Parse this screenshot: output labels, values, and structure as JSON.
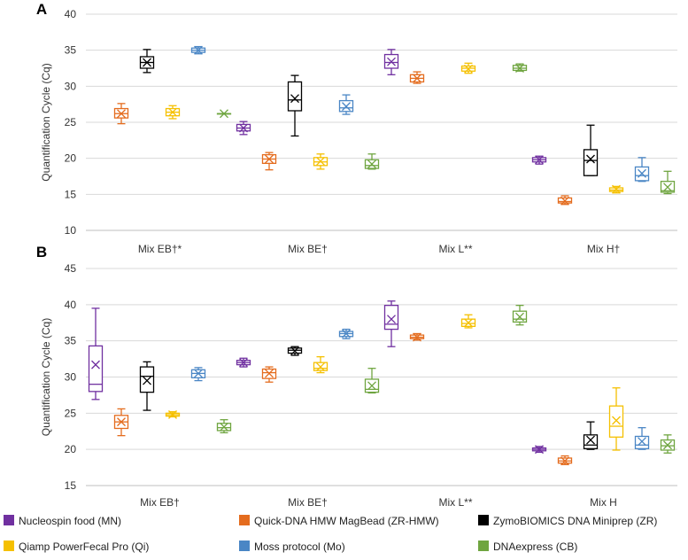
{
  "legend": [
    {
      "name": "Nucleospin food (MN)",
      "color": "#7030A0"
    },
    {
      "name": "Quick-DNA HMW MagBead (ZR-HMW)",
      "color": "#E46C1E"
    },
    {
      "name": "ZymoBIOMICS DNA Miniprep (ZR)",
      "color": "#000000"
    },
    {
      "name": "Qiamp PowerFecal Pro (Qi)",
      "color": "#F5C000"
    },
    {
      "name": "Moss protocol (Mo)",
      "color": "#4A86C5"
    },
    {
      "name": "DNAexpress (CB)",
      "color": "#6FA540"
    }
  ],
  "chart_data": [
    {
      "type": "boxplot",
      "panel": "A",
      "ylabel": "Quantification Cycle (Cq)",
      "ylim": [
        10,
        40
      ],
      "yticks": [
        10,
        15,
        20,
        25,
        30,
        35,
        40
      ],
      "categories": [
        "Mix EB†*",
        "Mix BE†",
        "Mix L**",
        "Mix H†"
      ],
      "series": [
        {
          "name": "Nucleospin food (MN)",
          "boxes": [
            null,
            {
              "min": 23.3,
              "q1": 23.8,
              "median": 24.2,
              "q3": 24.7,
              "max": 25.1,
              "mean": 24.2
            },
            {
              "min": 31.6,
              "q1": 32.5,
              "median": 33.3,
              "q3": 34.4,
              "max": 35.1,
              "mean": 33.4
            },
            {
              "min": 19.2,
              "q1": 19.5,
              "median": 19.8,
              "q3": 20.1,
              "max": 20.3,
              "mean": 19.8
            }
          ]
        },
        {
          "name": "Quick-DNA HMW MagBead (ZR-HMW)",
          "boxes": [
            {
              "min": 24.8,
              "q1": 25.6,
              "median": 26.2,
              "q3": 26.9,
              "max": 27.6,
              "mean": 26.2
            },
            {
              "min": 18.4,
              "q1": 19.3,
              "median": 19.9,
              "q3": 20.5,
              "max": 20.8,
              "mean": 19.9
            },
            {
              "min": 30.4,
              "q1": 30.6,
              "median": 31.1,
              "q3": 31.6,
              "max": 32.0,
              "mean": 31.1
            },
            {
              "min": 13.6,
              "q1": 13.8,
              "median": 14.0,
              "q3": 14.5,
              "max": 14.8,
              "mean": 14.1
            }
          ]
        },
        {
          "name": "ZymoBIOMICS DNA Miniprep (ZR)",
          "boxes": [
            {
              "min": 31.9,
              "q1": 32.5,
              "median": 33.3,
              "q3": 34.1,
              "max": 35.1,
              "mean": 33.3
            },
            {
              "min": 23.1,
              "q1": 26.6,
              "median": 28.1,
              "q3": 30.6,
              "max": 31.5,
              "mean": 28.3
            },
            null,
            {
              "min": 17.6,
              "q1": 17.6,
              "median": 19.7,
              "q3": 21.2,
              "max": 24.6,
              "mean": 19.9
            }
          ]
        },
        {
          "name": "Qiamp PowerFecal Pro (Qi)",
          "boxes": [
            {
              "min": 25.5,
              "q1": 25.9,
              "median": 26.4,
              "q3": 26.9,
              "max": 27.3,
              "mean": 26.4
            },
            {
              "min": 18.5,
              "q1": 19.0,
              "median": 19.5,
              "q3": 20.1,
              "max": 20.6,
              "mean": 19.6
            },
            {
              "min": 31.8,
              "q1": 32.1,
              "median": 32.5,
              "q3": 32.8,
              "max": 33.2,
              "mean": 32.4
            },
            {
              "min": 15.2,
              "q1": 15.4,
              "median": 15.6,
              "q3": 15.9,
              "max": 16.1,
              "mean": 15.7
            }
          ]
        },
        {
          "name": "Moss protocol (Mo)",
          "boxes": [
            {
              "min": 34.5,
              "q1": 34.7,
              "median": 35.0,
              "q3": 35.3,
              "max": 35.5,
              "mean": 35.0
            },
            {
              "min": 26.1,
              "q1": 26.5,
              "median": 27.0,
              "q3": 28.0,
              "max": 28.8,
              "mean": 27.2
            },
            null,
            {
              "min": 16.8,
              "q1": 16.9,
              "median": 17.6,
              "q3": 18.8,
              "max": 20.1,
              "mean": 17.9
            }
          ]
        },
        {
          "name": "DNAexpress (CB)",
          "boxes": [
            {
              "min": 26.2,
              "q1": 26.2,
              "median": 26.2,
              "q3": 26.2,
              "max": 26.2,
              "mean": 26.2
            },
            {
              "min": 18.5,
              "q1": 18.6,
              "median": 19.0,
              "q3": 19.8,
              "max": 20.6,
              "mean": 19.2
            },
            {
              "min": 32.1,
              "q1": 32.2,
              "median": 32.5,
              "q3": 32.9,
              "max": 33.1,
              "mean": 32.5
            },
            {
              "min": 15.1,
              "q1": 15.3,
              "median": 15.5,
              "q3": 16.8,
              "max": 18.2,
              "mean": 16.0
            }
          ]
        }
      ]
    },
    {
      "type": "boxplot",
      "panel": "B",
      "ylabel": "Quantification Cycle (Cq)",
      "ylim": [
        15,
        45
      ],
      "yticks": [
        15,
        20,
        25,
        30,
        35,
        40,
        45
      ],
      "categories": [
        "Mix EB†",
        "Mix BE†",
        "Mix L**",
        "Mix H"
      ],
      "series": [
        {
          "name": "Nucleospin food (MN)",
          "boxes": [
            {
              "min": 26.9,
              "q1": 28.0,
              "median": 29.0,
              "q3": 34.3,
              "max": 39.5,
              "mean": 31.7
            },
            {
              "min": 31.4,
              "q1": 31.7,
              "median": 32.0,
              "q3": 32.3,
              "max": 32.6,
              "mean": 32.0
            },
            {
              "min": 34.2,
              "q1": 36.6,
              "median": 37.3,
              "q3": 39.9,
              "max": 40.5,
              "mean": 38.0
            },
            {
              "min": 19.6,
              "q1": 19.8,
              "median": 20.0,
              "q3": 20.2,
              "max": 20.4,
              "mean": 20.0
            }
          ]
        },
        {
          "name": "Quick-DNA HMW MagBead (ZR-HMW)",
          "boxes": [
            {
              "min": 21.9,
              "q1": 22.9,
              "median": 23.8,
              "q3": 24.7,
              "max": 25.6,
              "mean": 23.8
            },
            {
              "min": 29.3,
              "q1": 29.8,
              "median": 30.6,
              "q3": 31.1,
              "max": 31.4,
              "mean": 30.5
            },
            {
              "min": 35.1,
              "q1": 35.3,
              "median": 35.5,
              "q3": 35.8,
              "max": 36.0,
              "mean": 35.5
            },
            {
              "min": 17.9,
              "q1": 18.1,
              "median": 18.4,
              "q3": 18.8,
              "max": 19.1,
              "mean": 18.4
            }
          ]
        },
        {
          "name": "ZymoBIOMICS DNA Miniprep (ZR)",
          "boxes": [
            {
              "min": 25.4,
              "q1": 27.9,
              "median": 30.1,
              "q3": 31.4,
              "max": 32.1,
              "mean": 29.5
            },
            {
              "min": 33.0,
              "q1": 33.3,
              "median": 33.7,
              "q3": 34.0,
              "max": 34.2,
              "mean": 33.6
            },
            null,
            {
              "min": 20.0,
              "q1": 20.1,
              "median": 20.6,
              "q3": 22.0,
              "max": 23.8,
              "mean": 21.3
            }
          ]
        },
        {
          "name": "Qiamp PowerFecal Pro (Qi)",
          "boxes": [
            {
              "min": 24.5,
              "q1": 24.6,
              "median": 24.8,
              "q3": 25.0,
              "max": 25.2,
              "mean": 24.8
            },
            {
              "min": 30.6,
              "q1": 30.9,
              "median": 31.2,
              "q3": 32.0,
              "max": 32.8,
              "mean": 31.4
            },
            {
              "min": 36.8,
              "q1": 37.0,
              "median": 37.4,
              "q3": 38.0,
              "max": 38.6,
              "mean": 37.5
            },
            {
              "min": 19.9,
              "q1": 21.7,
              "median": 23.2,
              "q3": 26.0,
              "max": 28.5,
              "mean": 24.0
            }
          ]
        },
        {
          "name": "Moss protocol (Mo)",
          "boxes": [
            {
              "min": 29.5,
              "q1": 29.9,
              "median": 30.5,
              "q3": 31.0,
              "max": 31.3,
              "mean": 30.5
            },
            {
              "min": 35.3,
              "q1": 35.6,
              "median": 36.0,
              "q3": 36.3,
              "max": 36.6,
              "mean": 36.0
            },
            null,
            {
              "min": 20.0,
              "q1": 20.1,
              "median": 20.6,
              "q3": 21.8,
              "max": 23.0,
              "mean": 21.1
            }
          ]
        },
        {
          "name": "DNAexpress (CB)",
          "boxes": [
            {
              "min": 22.3,
              "q1": 22.6,
              "median": 23.0,
              "q3": 23.6,
              "max": 24.1,
              "mean": 23.1
            },
            {
              "min": 27.8,
              "q1": 27.9,
              "median": 28.3,
              "q3": 29.7,
              "max": 31.2,
              "mean": 28.8
            },
            {
              "min": 37.2,
              "q1": 37.6,
              "median": 38.0,
              "q3": 39.1,
              "max": 39.9,
              "mean": 38.3
            },
            {
              "min": 19.5,
              "q1": 19.9,
              "median": 20.5,
              "q3": 21.3,
              "max": 22.0,
              "mean": 20.6
            }
          ]
        }
      ]
    }
  ]
}
